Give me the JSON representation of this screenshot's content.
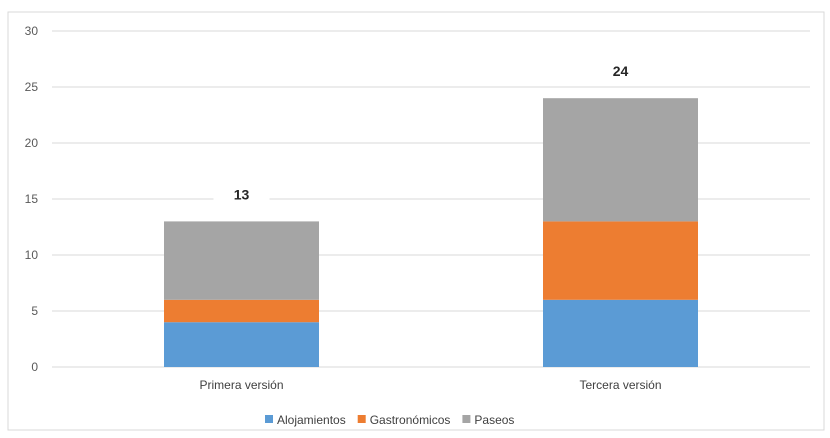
{
  "chart_data": {
    "type": "bar",
    "stacked": true,
    "categories": [
      "Primera versión",
      "Tercera versión"
    ],
    "series": [
      {
        "name": "Alojamientos",
        "values": [
          4,
          6
        ],
        "color": "#5b9bd5"
      },
      {
        "name": "Gastronómicos",
        "values": [
          2,
          7
        ],
        "color": "#ed7d31"
      },
      {
        "name": "Paseos",
        "values": [
          7,
          11
        ],
        "color": "#a5a5a5"
      }
    ],
    "totals": [
      13,
      24
    ],
    "ylim": [
      0,
      30
    ],
    "yticks": [
      0,
      5,
      10,
      15,
      20,
      25,
      30
    ],
    "grid": true,
    "legend_position": "bottom",
    "title": "",
    "xlabel": "",
    "ylabel": ""
  }
}
